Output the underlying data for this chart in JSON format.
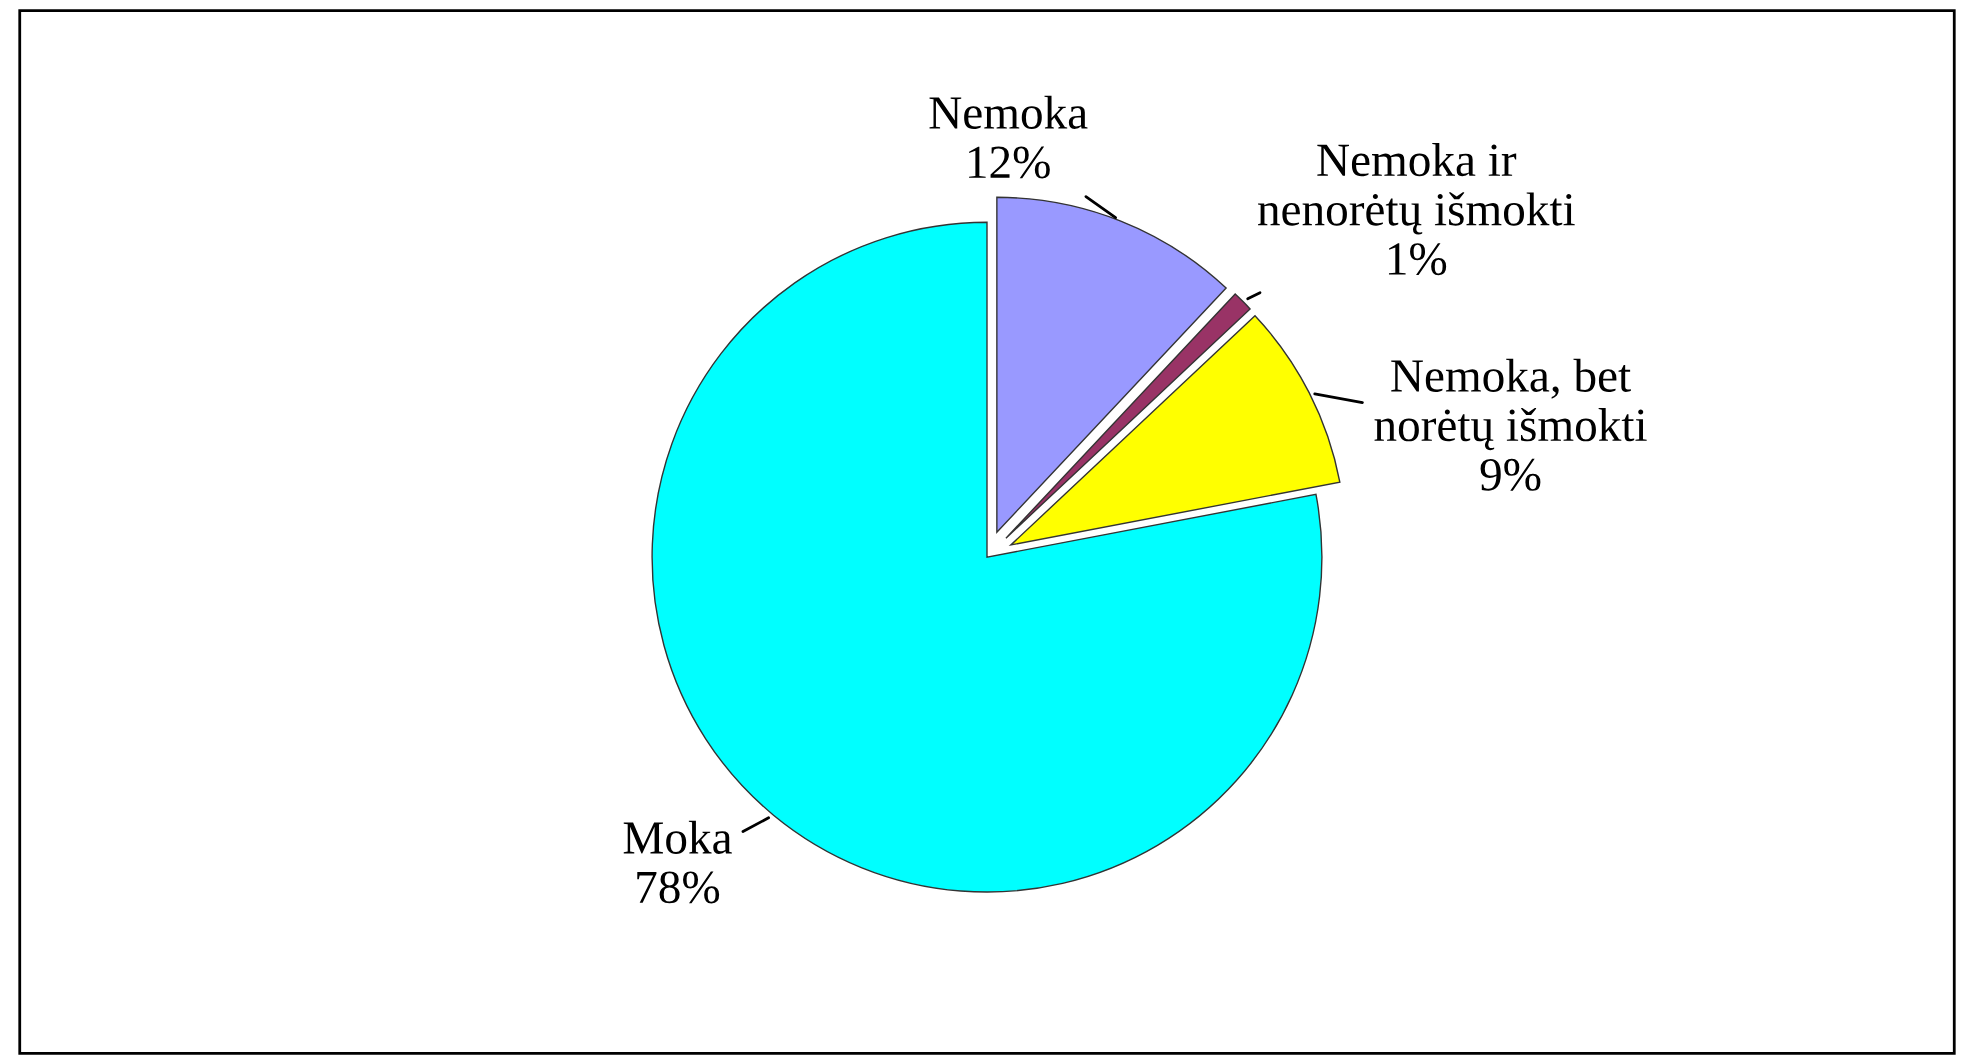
{
  "chart_data": {
    "type": "pie",
    "categories": [
      "Nemoka",
      "Nemoka ir\nnenorėtų išmokti",
      "Nemoka, bet\nnorėtų išmokti",
      "Moka"
    ],
    "values": [
      12,
      1,
      9,
      78
    ],
    "colors": [
      "#9999ff",
      "#993366",
      "#ffff00",
      "#00ffff"
    ],
    "value_labels": [
      "12%",
      "1%",
      "9%",
      "78%"
    ],
    "legend": false
  }
}
